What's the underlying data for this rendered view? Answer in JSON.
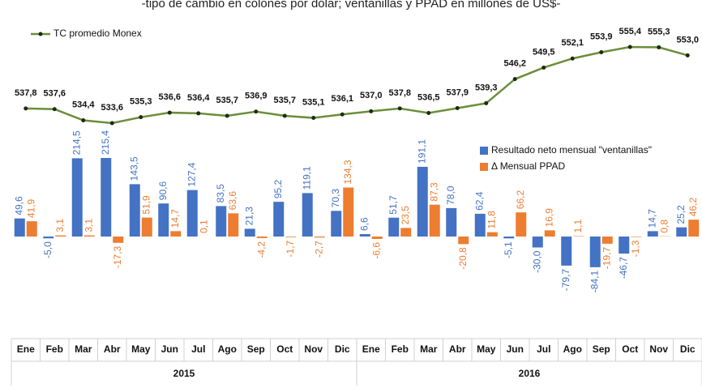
{
  "chart_data": {
    "type": "bar",
    "subtitle": "-tipo de cambio en colones por dólar; ventanillas y PPAD en millones de US$-",
    "categories": [
      "Ene",
      "Feb",
      "Mar",
      "Abr",
      "May",
      "Jun",
      "Jul",
      "Ago",
      "Sep",
      "Oct",
      "Nov",
      "Dic",
      "Ene",
      "Feb",
      "Mar",
      "Abr",
      "May",
      "Jun",
      "Jul",
      "Ago",
      "Sep",
      "Oct",
      "Nov",
      "Dic"
    ],
    "year_groups": [
      "2015",
      "2016"
    ],
    "series": [
      {
        "name": "TC promedio Monex",
        "type": "line",
        "color": "#6b8e3a",
        "values": [
          537.8,
          537.6,
          534.4,
          533.6,
          535.3,
          536.6,
          536.4,
          535.7,
          536.9,
          535.7,
          535.1,
          536.1,
          537.0,
          537.8,
          536.5,
          537.9,
          539.3,
          546.2,
          549.5,
          552.1,
          553.9,
          555.4,
          555.3,
          553.0
        ],
        "value_labels": [
          "537,8",
          "537,6",
          "534,4",
          "533,6",
          "535,3",
          "536,6",
          "536,4",
          "535,7",
          "536,9",
          "535,7",
          "535,1",
          "536,1",
          "537,0",
          "537,8",
          "536,5",
          "537,9",
          "539,3",
          "546,2",
          "549,5",
          "552,1",
          "553,9",
          "555,4",
          "555,3",
          "553,0"
        ]
      },
      {
        "name": "Resultado neto mensual \"ventanillas\"",
        "type": "bar",
        "color": "#4472c4",
        "values": [
          49.6,
          -5.0,
          214.5,
          215.4,
          143.5,
          90.6,
          127.4,
          83.5,
          21.3,
          95.2,
          119.1,
          70.3,
          6.6,
          51.7,
          191.1,
          78.0,
          62.4,
          -5.1,
          -30.0,
          -79.7,
          -84.1,
          -46.7,
          14.7,
          25.2
        ],
        "value_labels": [
          "49,6",
          "-5,0",
          "214,5",
          "215,4",
          "143,5",
          "90,6",
          "127,4",
          "83,5",
          "21,3",
          "95,2",
          "119,1",
          "70,3",
          "6,6",
          "51,7",
          "191,1",
          "78,0",
          "62,4",
          "-5,1",
          "-30,0",
          "-79,7",
          "-84,1",
          "-46,7",
          "14,7",
          "25,2"
        ]
      },
      {
        "name": "Δ Mensual PPAD",
        "type": "bar",
        "color": "#ed7d31",
        "values": [
          41.9,
          3.1,
          3.1,
          -17.3,
          51.9,
          14.7,
          0.1,
          63.6,
          -4.2,
          -1.7,
          -2.7,
          134.3,
          -6.6,
          23.5,
          87.3,
          -20.8,
          11.8,
          66.2,
          16.9,
          1.1,
          -19.7,
          -1.3,
          0.8,
          46.2
        ],
        "value_labels": [
          "41,9",
          "3,1",
          "3,1",
          "-17,3",
          "51,9",
          "14,7",
          "0,1",
          "63,6",
          "-4,2",
          "-1,7",
          "-2,7",
          "134,3",
          "-6,6",
          "23,5",
          "87,3",
          "-20,8",
          "11,8",
          "66,2",
          "16,9",
          "1,1",
          "-19,7",
          "-1,3",
          "0,8",
          "46,2"
        ]
      }
    ]
  }
}
